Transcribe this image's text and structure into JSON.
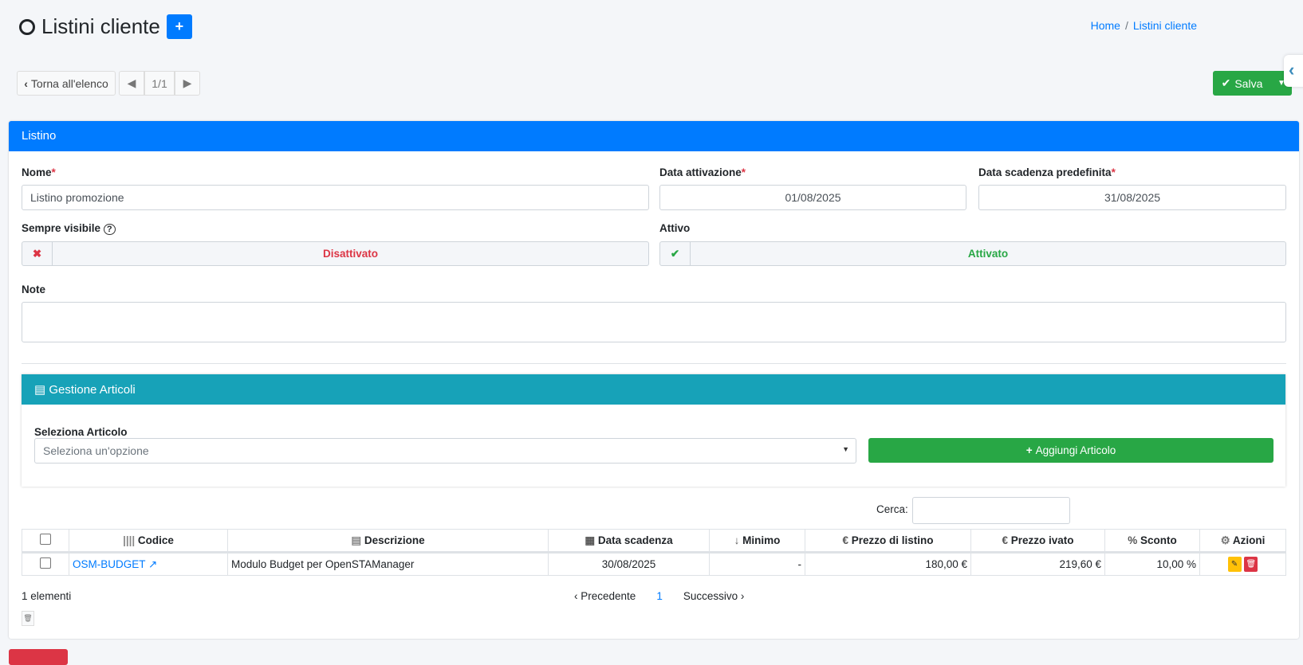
{
  "header": {
    "title": "Listini cliente",
    "add_icon": "plus",
    "breadcrumb": [
      "Home",
      "Listini cliente"
    ]
  },
  "toolbar": {
    "back_label": "Torna all'elenco",
    "pager": "1/1",
    "save_label": "Salva"
  },
  "form": {
    "card_title": "Listino",
    "nome_label": "Nome",
    "nome_value": "Listino promozione",
    "attivazione_label": "Data attivazione",
    "attivazione_value": "01/08/2025",
    "scadenza_label": "Data scadenza predefinita",
    "scadenza_value": "31/08/2025",
    "sempre_label": "Sempre visibile",
    "sempre_value": "Disattivato",
    "attivo_label": "Attivo",
    "attivo_value": "Attivato",
    "note_label": "Note",
    "note_value": "",
    "required_mark": "*"
  },
  "articoli": {
    "title": "Gestione Articoli",
    "select_label": "Seleziona Articolo",
    "select_placeholder": "Seleziona un'opzione",
    "add_label": "Aggiungi Articolo",
    "search_label": "Cerca:",
    "columns": [
      "Codice",
      "Descrizione",
      "Data scadenza",
      "Minimo",
      "Prezzo di listino",
      "Prezzo ivato",
      "Sconto",
      "Azioni"
    ],
    "rows": [
      {
        "codice": "OSM-BUDGET",
        "descrizione": "Modulo Budget per OpenSTAManager",
        "scadenza": "30/08/2025",
        "minimo": "-",
        "prezzo": "180,00 €",
        "ivato": "219,60 €",
        "sconto": "10,00 %"
      }
    ],
    "count": "1 elementi",
    "pagination": {
      "prev": "Precedente",
      "page": "1",
      "next": "Successivo"
    }
  },
  "colors": {
    "primary": "#007bff",
    "success": "#28a745",
    "danger": "#dc3545",
    "info": "#17a2b8",
    "warning": "#ffc107"
  }
}
